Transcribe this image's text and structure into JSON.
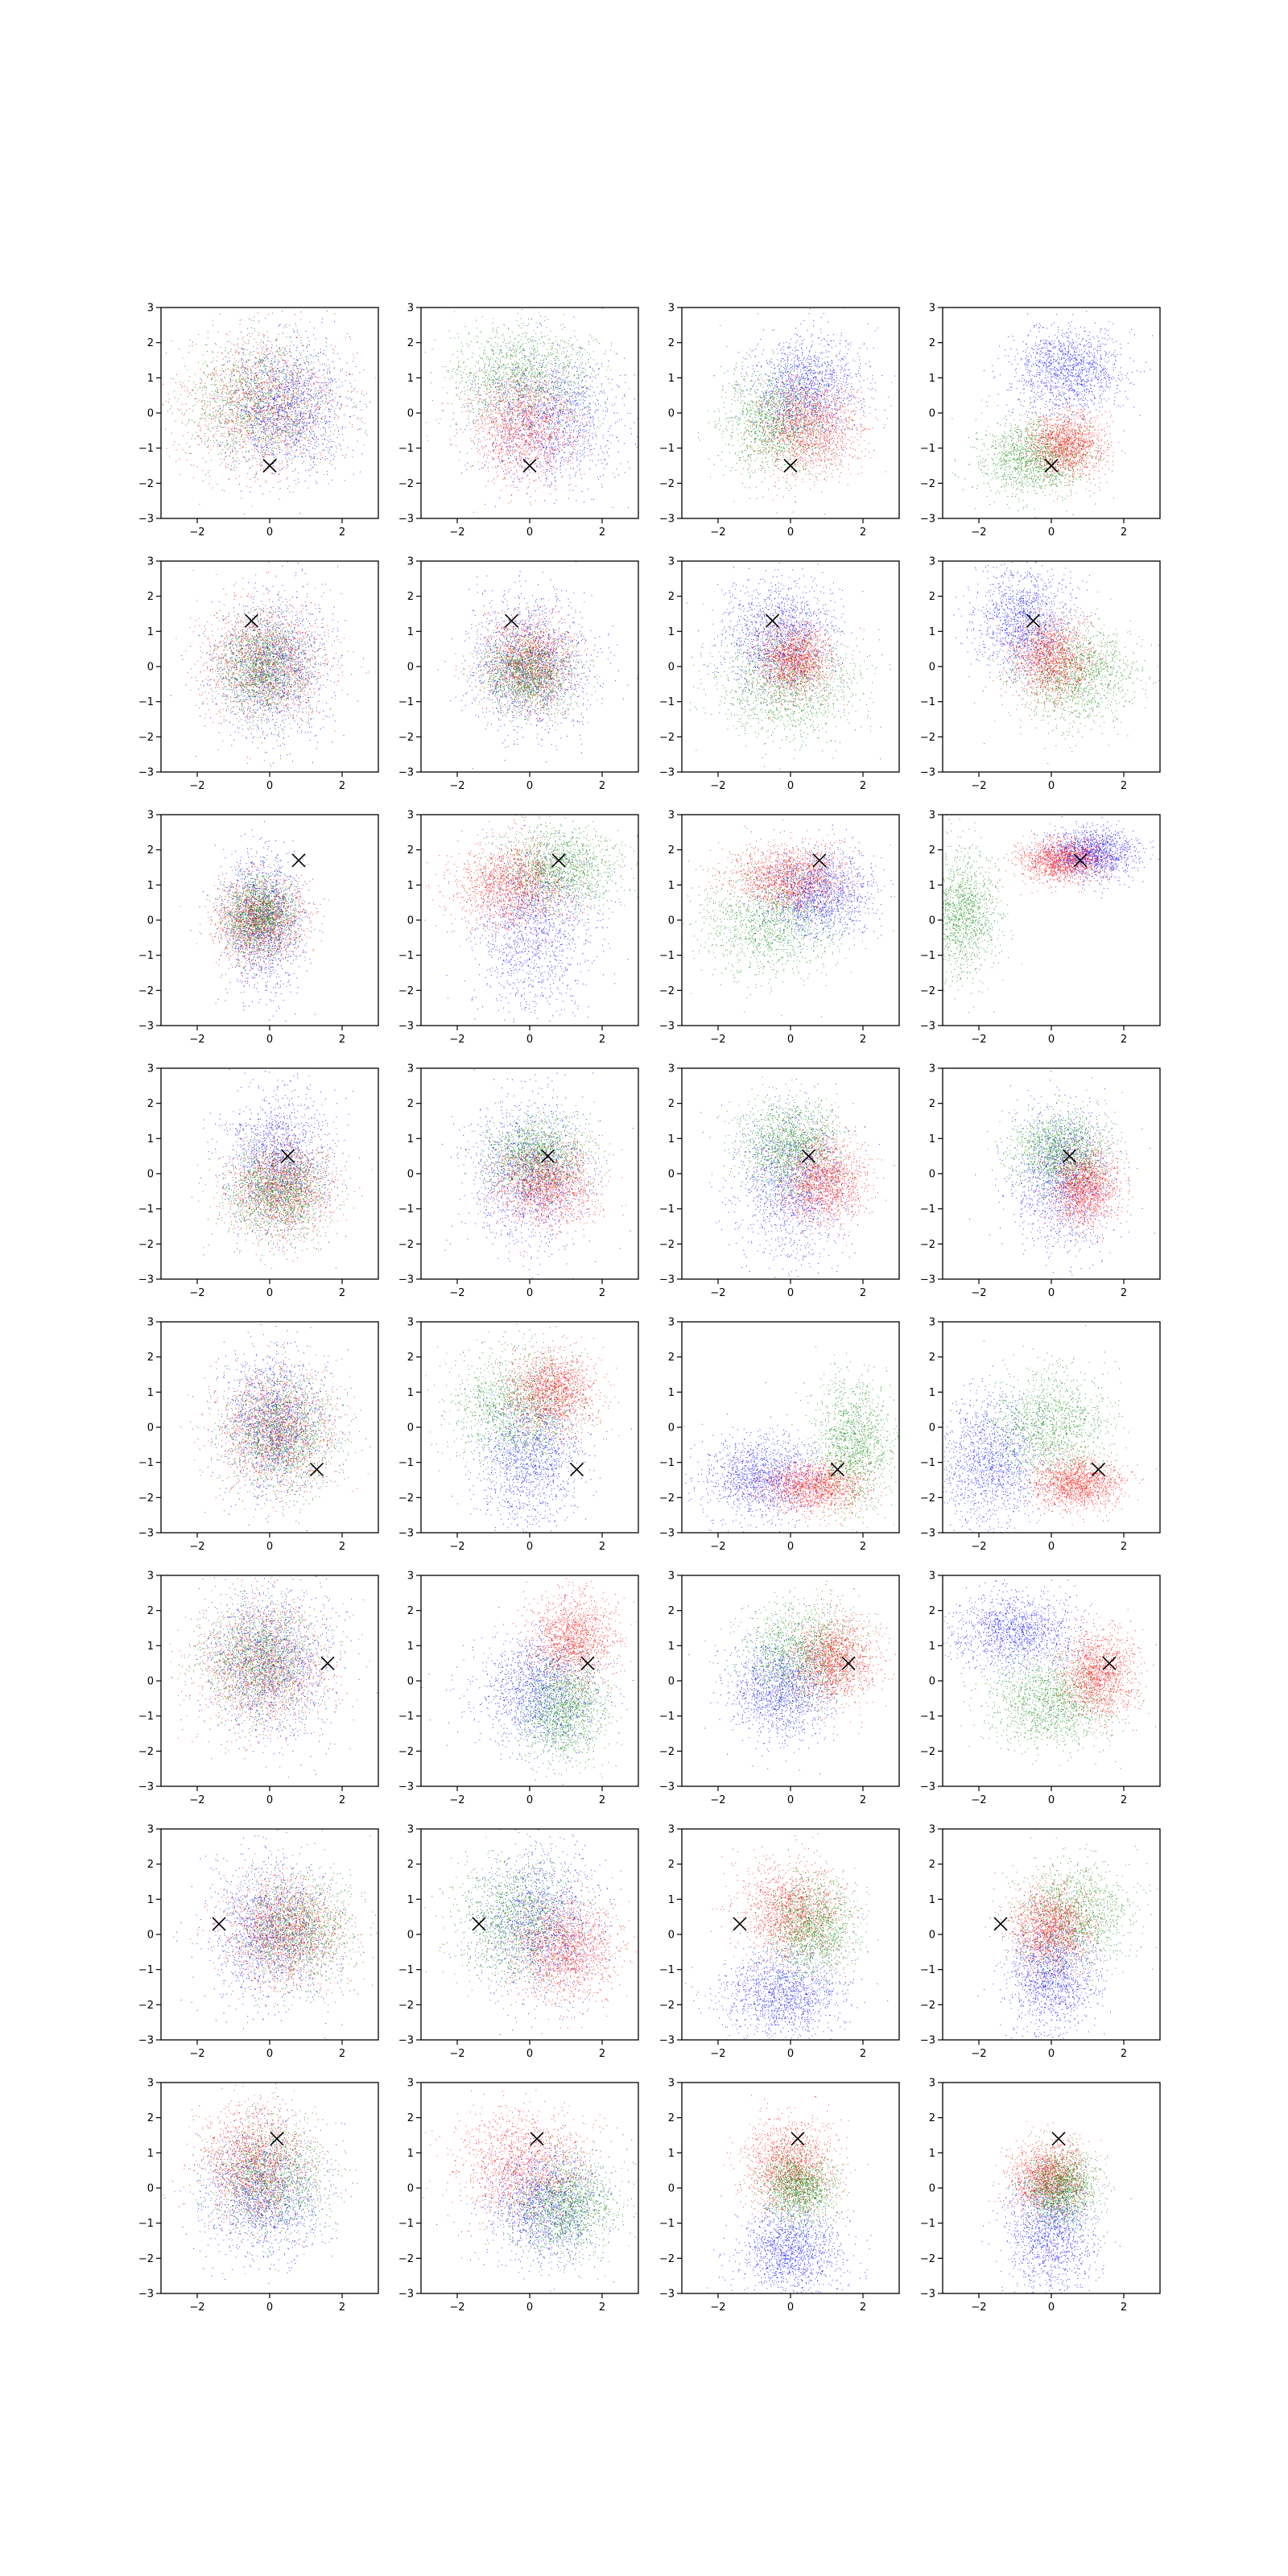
{
  "chart_data": {
    "type": "scatter",
    "grid": false,
    "rows": 8,
    "cols": 4,
    "xlim": [
      -3,
      3
    ],
    "ylim": [
      -3,
      3
    ],
    "xticks": [
      -2,
      0,
      2
    ],
    "yticks": [
      -3,
      -2,
      -1,
      0,
      1,
      2,
      3
    ],
    "xtick_labels": [
      "−2",
      "0",
      "2"
    ],
    "ytick_labels": [
      "−3",
      "−2",
      "−1",
      "0",
      "1",
      "2",
      "3"
    ],
    "marker_color": "#000000",
    "series_colors": {
      "blue": "#0000ff",
      "red": "#ff0000",
      "green": "#008000"
    },
    "points_per_cluster": 1400,
    "panels": [
      {
        "row": 0,
        "col": 0,
        "marker": [
          0.0,
          -1.5
        ],
        "clusters": [
          {
            "color": "green",
            "cx": -0.3,
            "cy": 0.3,
            "sx": 1.0,
            "sy": 0.9
          },
          {
            "color": "red",
            "cx": -0.2,
            "cy": 0.2,
            "sx": 1.05,
            "sy": 0.95
          },
          {
            "color": "blue",
            "cx": 0.5,
            "cy": 0.2,
            "sx": 0.85,
            "sy": 0.9
          }
        ]
      },
      {
        "row": 0,
        "col": 1,
        "marker": [
          0.0,
          -1.5
        ],
        "clusters": [
          {
            "color": "green",
            "cx": -0.2,
            "cy": 1.0,
            "sx": 1.0,
            "sy": 0.75
          },
          {
            "color": "blue",
            "cx": 0.5,
            "cy": -0.2,
            "sx": 1.0,
            "sy": 0.9
          },
          {
            "color": "red",
            "cx": -0.2,
            "cy": -0.4,
            "sx": 0.75,
            "sy": 0.75
          }
        ]
      },
      {
        "row": 0,
        "col": 2,
        "marker": [
          0.0,
          -1.5
        ],
        "clusters": [
          {
            "color": "blue",
            "cx": 0.4,
            "cy": 0.7,
            "sx": 0.75,
            "sy": 0.75
          },
          {
            "color": "green",
            "cx": -0.4,
            "cy": -0.3,
            "sx": 0.75,
            "sy": 0.8
          },
          {
            "color": "red",
            "cx": 0.5,
            "cy": -0.4,
            "sx": 0.7,
            "sy": 0.65
          }
        ]
      },
      {
        "row": 0,
        "col": 3,
        "marker": [
          0.0,
          -1.5
        ],
        "clusters": [
          {
            "color": "blue",
            "cx": 0.4,
            "cy": 1.2,
            "sx": 0.75,
            "sy": 0.6
          },
          {
            "color": "green",
            "cx": -0.5,
            "cy": -1.3,
            "sx": 0.75,
            "sy": 0.55
          },
          {
            "color": "red",
            "cx": 0.4,
            "cy": -0.9,
            "sx": 0.5,
            "sy": 0.45
          }
        ]
      },
      {
        "row": 1,
        "col": 0,
        "marker": [
          -0.5,
          1.3
        ],
        "clusters": [
          {
            "color": "blue",
            "cx": 0.1,
            "cy": 0.0,
            "sx": 0.8,
            "sy": 1.0
          },
          {
            "color": "red",
            "cx": -0.1,
            "cy": 0.1,
            "sx": 0.85,
            "sy": 0.85
          },
          {
            "color": "green",
            "cx": -0.2,
            "cy": 0.0,
            "sx": 0.6,
            "sy": 0.7
          }
        ]
      },
      {
        "row": 1,
        "col": 1,
        "marker": [
          -0.5,
          1.3
        ],
        "clusters": [
          {
            "color": "blue",
            "cx": 0.0,
            "cy": 0.1,
            "sx": 0.85,
            "sy": 0.95
          },
          {
            "color": "red",
            "cx": 0.0,
            "cy": 0.1,
            "sx": 0.6,
            "sy": 0.65
          },
          {
            "color": "green",
            "cx": -0.1,
            "cy": -0.2,
            "sx": 0.65,
            "sy": 0.6
          }
        ]
      },
      {
        "row": 1,
        "col": 2,
        "marker": [
          -0.5,
          1.3
        ],
        "clusters": [
          {
            "color": "blue",
            "cx": -0.3,
            "cy": 0.9,
            "sx": 0.8,
            "sy": 0.8
          },
          {
            "color": "green",
            "cx": -0.1,
            "cy": -0.5,
            "sx": 1.0,
            "sy": 0.8
          },
          {
            "color": "red",
            "cx": 0.1,
            "cy": 0.2,
            "sx": 0.5,
            "sy": 0.5
          }
        ]
      },
      {
        "row": 1,
        "col": 3,
        "marker": [
          -0.5,
          1.3
        ],
        "clusters": [
          {
            "color": "blue",
            "cx": -0.8,
            "cy": 1.3,
            "sx": 0.65,
            "sy": 0.75
          },
          {
            "color": "green",
            "cx": 0.7,
            "cy": -0.2,
            "sx": 0.85,
            "sy": 0.7
          },
          {
            "color": "red",
            "cx": 0.0,
            "cy": 0.2,
            "sx": 0.55,
            "sy": 0.55
          }
        ]
      },
      {
        "row": 2,
        "col": 0,
        "marker": [
          0.8,
          1.7
        ],
        "clusters": [
          {
            "color": "blue",
            "cx": -0.2,
            "cy": 0.0,
            "sx": 0.55,
            "sy": 1.0
          },
          {
            "color": "red",
            "cx": -0.3,
            "cy": 0.0,
            "sx": 0.6,
            "sy": 0.6
          },
          {
            "color": "green",
            "cx": -0.3,
            "cy": 0.1,
            "sx": 0.5,
            "sy": 0.55
          }
        ]
      },
      {
        "row": 2,
        "col": 1,
        "marker": [
          0.8,
          1.7
        ],
        "clusters": [
          {
            "color": "blue",
            "cx": 0.1,
            "cy": -0.3,
            "sx": 0.8,
            "sy": 1.2
          },
          {
            "color": "green",
            "cx": 0.8,
            "cy": 1.5,
            "sx": 0.8,
            "sy": 0.6
          },
          {
            "color": "red",
            "cx": -0.5,
            "cy": 1.0,
            "sx": 0.8,
            "sy": 0.6
          }
        ]
      },
      {
        "row": 2,
        "col": 2,
        "marker": [
          0.8,
          1.7
        ],
        "clusters": [
          {
            "color": "green",
            "cx": -0.5,
            "cy": 0.0,
            "sx": 1.0,
            "sy": 0.8
          },
          {
            "color": "blue",
            "cx": 0.8,
            "cy": 0.8,
            "sx": 0.7,
            "sy": 0.6
          },
          {
            "color": "red",
            "cx": 0.0,
            "cy": 1.2,
            "sx": 0.8,
            "sy": 0.45
          }
        ]
      },
      {
        "row": 2,
        "col": 3,
        "marker": [
          0.8,
          1.7
        ],
        "clusters": [
          {
            "color": "green",
            "cx": -2.5,
            "cy": 0.2,
            "sx": 0.5,
            "sy": 0.9
          },
          {
            "color": "blue",
            "cx": 1.1,
            "cy": 1.9,
            "sx": 0.6,
            "sy": 0.35
          },
          {
            "color": "red",
            "cx": 0.3,
            "cy": 1.7,
            "sx": 0.6,
            "sy": 0.3
          }
        ]
      },
      {
        "row": 3,
        "col": 0,
        "marker": [
          0.5,
          0.5
        ],
        "clusters": [
          {
            "color": "blue",
            "cx": 0.2,
            "cy": 0.4,
            "sx": 0.7,
            "sy": 1.0
          },
          {
            "color": "red",
            "cx": 0.3,
            "cy": -0.4,
            "sx": 0.7,
            "sy": 0.7
          },
          {
            "color": "green",
            "cx": 0.2,
            "cy": -0.5,
            "sx": 0.7,
            "sy": 0.65
          }
        ]
      },
      {
        "row": 3,
        "col": 1,
        "marker": [
          0.5,
          0.5
        ],
        "clusters": [
          {
            "color": "blue",
            "cx": 0.0,
            "cy": 0.0,
            "sx": 0.8,
            "sy": 1.0
          },
          {
            "color": "green",
            "cx": 0.2,
            "cy": 0.5,
            "sx": 0.7,
            "sy": 0.6
          },
          {
            "color": "red",
            "cx": 0.4,
            "cy": -0.3,
            "sx": 0.7,
            "sy": 0.6
          }
        ]
      },
      {
        "row": 3,
        "col": 2,
        "marker": [
          0.5,
          0.5
        ],
        "clusters": [
          {
            "color": "blue",
            "cx": 0.0,
            "cy": -0.3,
            "sx": 0.75,
            "sy": 1.0
          },
          {
            "color": "green",
            "cx": 0.0,
            "cy": 0.8,
            "sx": 0.7,
            "sy": 0.65
          },
          {
            "color": "red",
            "cx": 0.9,
            "cy": -0.2,
            "sx": 0.55,
            "sy": 0.6
          }
        ]
      },
      {
        "row": 3,
        "col": 3,
        "marker": [
          0.5,
          0.5
        ],
        "clusters": [
          {
            "color": "blue",
            "cx": 0.3,
            "cy": -0.2,
            "sx": 0.7,
            "sy": 1.0
          },
          {
            "color": "green",
            "cx": 0.3,
            "cy": 0.6,
            "sx": 0.7,
            "sy": 0.55
          },
          {
            "color": "red",
            "cx": 0.9,
            "cy": -0.4,
            "sx": 0.45,
            "sy": 0.55
          }
        ]
      },
      {
        "row": 4,
        "col": 0,
        "marker": [
          1.3,
          -1.2
        ],
        "clusters": [
          {
            "color": "blue",
            "cx": 0.1,
            "cy": 0.1,
            "sx": 0.7,
            "sy": 1.0
          },
          {
            "color": "red",
            "cx": 0.2,
            "cy": -0.1,
            "sx": 0.8,
            "sy": 0.85
          },
          {
            "color": "green",
            "cx": 0.3,
            "cy": -0.2,
            "sx": 0.8,
            "sy": 0.8
          }
        ]
      },
      {
        "row": 4,
        "col": 1,
        "marker": [
          1.3,
          -1.2
        ],
        "clusters": [
          {
            "color": "blue",
            "cx": 0.0,
            "cy": -0.8,
            "sx": 0.7,
            "sy": 1.0
          },
          {
            "color": "green",
            "cx": -0.4,
            "cy": 0.6,
            "sx": 0.9,
            "sy": 0.8
          },
          {
            "color": "red",
            "cx": 0.6,
            "cy": 1.0,
            "sx": 0.6,
            "sy": 0.55
          }
        ]
      },
      {
        "row": 4,
        "col": 2,
        "marker": [
          1.3,
          -1.2
        ],
        "clusters": [
          {
            "color": "blue",
            "cx": -0.8,
            "cy": -1.4,
            "sx": 0.8,
            "sy": 0.6
          },
          {
            "color": "green",
            "cx": 1.7,
            "cy": -0.5,
            "sx": 0.55,
            "sy": 0.9
          },
          {
            "color": "red",
            "cx": 0.6,
            "cy": -1.7,
            "sx": 0.7,
            "sy": 0.35
          }
        ]
      },
      {
        "row": 4,
        "col": 3,
        "marker": [
          1.3,
          -1.2
        ],
        "clusters": [
          {
            "color": "blue",
            "cx": -1.7,
            "cy": -1.0,
            "sx": 0.7,
            "sy": 0.9
          },
          {
            "color": "green",
            "cx": 0.0,
            "cy": 0.0,
            "sx": 0.8,
            "sy": 0.75
          },
          {
            "color": "red",
            "cx": 0.7,
            "cy": -1.6,
            "sx": 0.6,
            "sy": 0.35
          }
        ]
      },
      {
        "row": 5,
        "col": 0,
        "marker": [
          1.6,
          0.5
        ],
        "clusters": [
          {
            "color": "blue",
            "cx": 0.0,
            "cy": 0.5,
            "sx": 0.85,
            "sy": 1.0
          },
          {
            "color": "red",
            "cx": -0.2,
            "cy": 0.4,
            "sx": 0.9,
            "sy": 0.9
          },
          {
            "color": "green",
            "cx": -0.3,
            "cy": 0.6,
            "sx": 0.8,
            "sy": 0.85
          }
        ]
      },
      {
        "row": 5,
        "col": 1,
        "marker": [
          1.6,
          0.5
        ],
        "clusters": [
          {
            "color": "red",
            "cx": 1.2,
            "cy": 1.2,
            "sx": 0.6,
            "sy": 0.6
          },
          {
            "color": "blue",
            "cx": 0.2,
            "cy": -0.3,
            "sx": 0.8,
            "sy": 0.8
          },
          {
            "color": "green",
            "cx": 0.9,
            "cy": -0.8,
            "sx": 0.6,
            "sy": 0.7
          }
        ]
      },
      {
        "row": 5,
        "col": 2,
        "marker": [
          1.6,
          0.5
        ],
        "clusters": [
          {
            "color": "green",
            "cx": 0.3,
            "cy": 0.8,
            "sx": 0.8,
            "sy": 0.7
          },
          {
            "color": "blue",
            "cx": -0.3,
            "cy": -0.3,
            "sx": 0.7,
            "sy": 0.7
          },
          {
            "color": "red",
            "cx": 1.2,
            "cy": 0.6,
            "sx": 0.55,
            "sy": 0.6
          }
        ]
      },
      {
        "row": 5,
        "col": 3,
        "marker": [
          1.6,
          0.5
        ],
        "clusters": [
          {
            "color": "blue",
            "cx": -1.0,
            "cy": 1.4,
            "sx": 0.9,
            "sy": 0.55
          },
          {
            "color": "green",
            "cx": 0.0,
            "cy": -0.6,
            "sx": 0.85,
            "sy": 0.65
          },
          {
            "color": "red",
            "cx": 1.3,
            "cy": 0.2,
            "sx": 0.5,
            "sy": 0.6
          }
        ]
      },
      {
        "row": 6,
        "col": 0,
        "marker": [
          -1.4,
          0.3
        ],
        "clusters": [
          {
            "color": "blue",
            "cx": 0.0,
            "cy": 0.1,
            "sx": 0.8,
            "sy": 1.0
          },
          {
            "color": "green",
            "cx": 0.7,
            "cy": 0.1,
            "sx": 0.8,
            "sy": 0.8
          },
          {
            "color": "red",
            "cx": 0.4,
            "cy": 0.1,
            "sx": 0.8,
            "sy": 0.75
          }
        ]
      },
      {
        "row": 6,
        "col": 1,
        "marker": [
          -1.4,
          0.3
        ],
        "clusters": [
          {
            "color": "blue",
            "cx": 0.3,
            "cy": 0.3,
            "sx": 0.8,
            "sy": 1.0
          },
          {
            "color": "green",
            "cx": -0.3,
            "cy": 0.4,
            "sx": 0.85,
            "sy": 0.85
          },
          {
            "color": "red",
            "cx": 1.0,
            "cy": -0.4,
            "sx": 0.7,
            "sy": 0.7
          }
        ]
      },
      {
        "row": 6,
        "col": 2,
        "marker": [
          -1.4,
          0.3
        ],
        "clusters": [
          {
            "color": "blue",
            "cx": -0.2,
            "cy": -1.7,
            "sx": 0.8,
            "sy": 0.6
          },
          {
            "color": "red",
            "cx": 0.0,
            "cy": 0.6,
            "sx": 0.7,
            "sy": 0.7
          },
          {
            "color": "green",
            "cx": 0.6,
            "cy": 0.2,
            "sx": 0.6,
            "sy": 0.7
          }
        ]
      },
      {
        "row": 6,
        "col": 3,
        "marker": [
          -1.4,
          0.3
        ],
        "clusters": [
          {
            "color": "blue",
            "cx": 0.0,
            "cy": -1.2,
            "sx": 0.6,
            "sy": 0.8
          },
          {
            "color": "green",
            "cx": 0.6,
            "cy": 0.5,
            "sx": 0.8,
            "sy": 0.75
          },
          {
            "color": "red",
            "cx": 0.0,
            "cy": 0.2,
            "sx": 0.55,
            "sy": 0.6
          }
        ]
      },
      {
        "row": 7,
        "col": 0,
        "marker": [
          0.2,
          1.4
        ],
        "clusters": [
          {
            "color": "blue",
            "cx": -0.2,
            "cy": -0.2,
            "sx": 0.8,
            "sy": 0.9
          },
          {
            "color": "green",
            "cx": 0.0,
            "cy": 0.3,
            "sx": 0.8,
            "sy": 0.8
          },
          {
            "color": "red",
            "cx": -0.4,
            "cy": 0.7,
            "sx": 0.75,
            "sy": 0.8
          }
        ]
      },
      {
        "row": 7,
        "col": 1,
        "marker": [
          0.2,
          1.4
        ],
        "clusters": [
          {
            "color": "red",
            "cx": -0.2,
            "cy": 0.6,
            "sx": 0.9,
            "sy": 0.8
          },
          {
            "color": "blue",
            "cx": 0.4,
            "cy": -0.5,
            "sx": 0.8,
            "sy": 0.8
          },
          {
            "color": "green",
            "cx": 1.0,
            "cy": -0.5,
            "sx": 0.7,
            "sy": 0.7
          }
        ]
      },
      {
        "row": 7,
        "col": 2,
        "marker": [
          0.2,
          1.4
        ],
        "clusters": [
          {
            "color": "blue",
            "cx": 0.0,
            "cy": -1.8,
            "sx": 0.7,
            "sy": 0.6
          },
          {
            "color": "red",
            "cx": 0.0,
            "cy": 0.6,
            "sx": 0.6,
            "sy": 0.65
          },
          {
            "color": "green",
            "cx": 0.2,
            "cy": 0.0,
            "sx": 0.5,
            "sy": 0.5
          }
        ]
      },
      {
        "row": 7,
        "col": 3,
        "marker": [
          0.2,
          1.4
        ],
        "clusters": [
          {
            "color": "blue",
            "cx": 0.0,
            "cy": -1.3,
            "sx": 0.6,
            "sy": 0.8
          },
          {
            "color": "red",
            "cx": -0.1,
            "cy": 0.3,
            "sx": 0.5,
            "sy": 0.5
          },
          {
            "color": "green",
            "cx": 0.3,
            "cy": 0.0,
            "sx": 0.5,
            "sy": 0.5
          }
        ]
      }
    ]
  }
}
